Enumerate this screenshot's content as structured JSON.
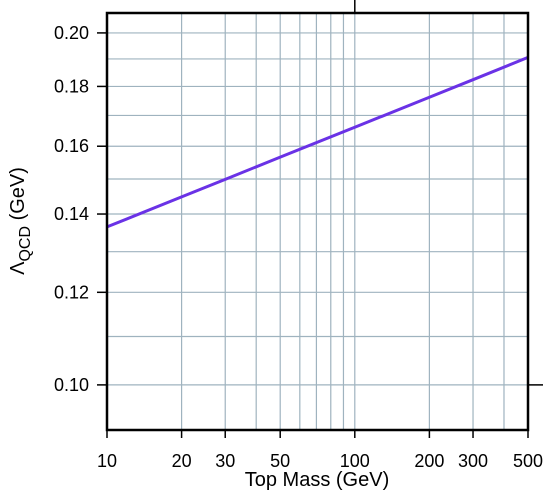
{
  "chart_data": {
    "type": "line",
    "title": "",
    "xlabel": "Top Mass (GeV)",
    "ylabel_main": "Λ",
    "ylabel_sub": "QCD",
    "ylabel_unit": " (GeV)",
    "x_scale": "log",
    "y_scale": "log",
    "xlim": [
      10,
      500
    ],
    "ylim": [
      0.0915,
      0.208
    ],
    "grid": true,
    "legend": "none",
    "x_ticks": [
      {
        "value": 10,
        "label": "10"
      },
      {
        "value": 20,
        "label": "20"
      },
      {
        "value": 30,
        "label": "30"
      },
      {
        "value": 50,
        "label": "50"
      },
      {
        "value": 100,
        "label": "100"
      },
      {
        "value": 200,
        "label": "200"
      },
      {
        "value": 300,
        "label": "300"
      },
      {
        "value": 500,
        "label": "500"
      }
    ],
    "x_grid": [
      10,
      20,
      30,
      40,
      50,
      60,
      70,
      80,
      90,
      100,
      200,
      300,
      400,
      500
    ],
    "y_ticks": [
      {
        "value": 0.1,
        "label": "0.10"
      },
      {
        "value": 0.12,
        "label": "0.12"
      },
      {
        "value": 0.14,
        "label": "0.14"
      },
      {
        "value": 0.16,
        "label": "0.16"
      },
      {
        "value": 0.18,
        "label": "0.18"
      },
      {
        "value": 0.2,
        "label": "0.20"
      }
    ],
    "y_grid": [
      0.1,
      0.11,
      0.12,
      0.13,
      0.14,
      0.15,
      0.16,
      0.17,
      0.18,
      0.19,
      0.2
    ],
    "series": [
      {
        "color": "#6a32e6",
        "x": [
          10,
          20,
          30,
          50,
          100,
          200,
          300,
          500
        ],
        "y": [
          0.1365,
          0.1448,
          0.1499,
          0.1566,
          0.1661,
          0.1762,
          0.1824,
          0.1906
        ]
      }
    ],
    "colors": {
      "grid": "#9fb3bf",
      "axis": "#000000"
    }
  }
}
